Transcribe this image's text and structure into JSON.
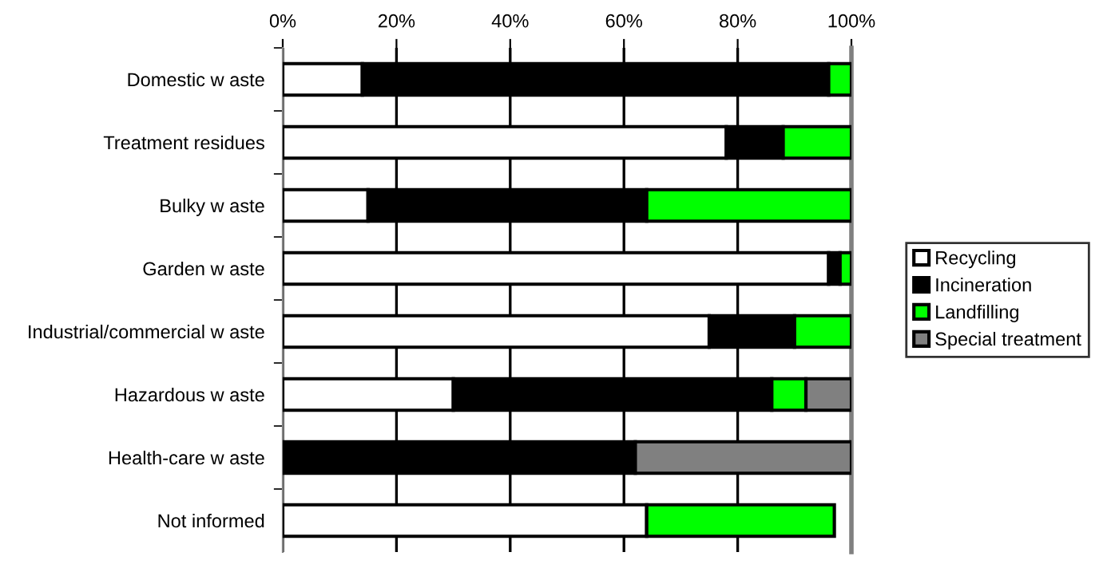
{
  "chart_data": {
    "type": "bar",
    "orientation": "horizontal",
    "stacked": true,
    "categories": [
      "Domestic w aste",
      "Treatment residues",
      "Bulky w aste",
      "Garden w aste",
      "Industrial/commercial w aste",
      "Hazardous w aste",
      "Health-care w aste",
      "Not informed"
    ],
    "series": [
      {
        "name": "Recycling",
        "color": "#ffffff",
        "values": [
          14,
          78,
          15,
          96,
          75,
          30,
          0,
          64
        ]
      },
      {
        "name": "Incineration",
        "color": "#000000",
        "values": [
          82,
          10,
          49,
          2,
          15,
          56,
          62,
          0
        ]
      },
      {
        "name": "Landfilling",
        "color": "#00ff00",
        "values": [
          4,
          12,
          36,
          2,
          10,
          6,
          0,
          33
        ]
      },
      {
        "name": "Special treatment",
        "color": "#808080",
        "values": [
          0,
          0,
          0,
          0,
          0,
          8,
          38,
          0
        ]
      }
    ],
    "xlim": [
      0,
      100
    ],
    "xticks": [
      {
        "value": 0,
        "label": "0%"
      },
      {
        "value": 20,
        "label": "20%"
      },
      {
        "value": 40,
        "label": "40%"
      },
      {
        "value": 60,
        "label": "60%"
      },
      {
        "value": 80,
        "label": "80%"
      },
      {
        "value": 100,
        "label": "100%"
      }
    ],
    "grid": "x",
    "legend": "right"
  }
}
